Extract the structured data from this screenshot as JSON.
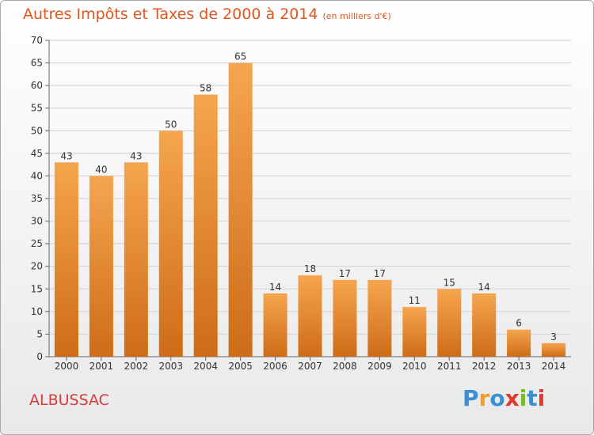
{
  "title": "Autres Impôts et Taxes de 2000 à 2014",
  "subtitle": "(en milliers d'€)",
  "place": "ALBUSSAC",
  "logo": {
    "letters": [
      "P",
      "r",
      "o",
      "x",
      "i",
      "t",
      "i"
    ],
    "colors": [
      "#3a8fd6",
      "#f0a020",
      "#3a8fd6",
      "#e23a2a",
      "#7ab829",
      "#3a8fd6",
      "#e23a2a"
    ]
  },
  "colors": {
    "bar_top": "#f6a54f",
    "bar_bottom": "#ce6c17",
    "title": "#e2551e",
    "place": "#d53c3c"
  },
  "chart_data": {
    "type": "bar",
    "categories": [
      "2000",
      "2001",
      "2002",
      "2003",
      "2004",
      "2005",
      "2006",
      "2007",
      "2008",
      "2009",
      "2010",
      "2011",
      "2012",
      "2013",
      "2014"
    ],
    "values": [
      43,
      40,
      43,
      50,
      58,
      65,
      14,
      18,
      17,
      17,
      11,
      15,
      14,
      6,
      3
    ],
    "ylim": [
      0,
      70
    ],
    "yticks": [
      0,
      5,
      10,
      15,
      20,
      25,
      30,
      35,
      40,
      45,
      50,
      55,
      60,
      65,
      70
    ],
    "grid": true
  }
}
